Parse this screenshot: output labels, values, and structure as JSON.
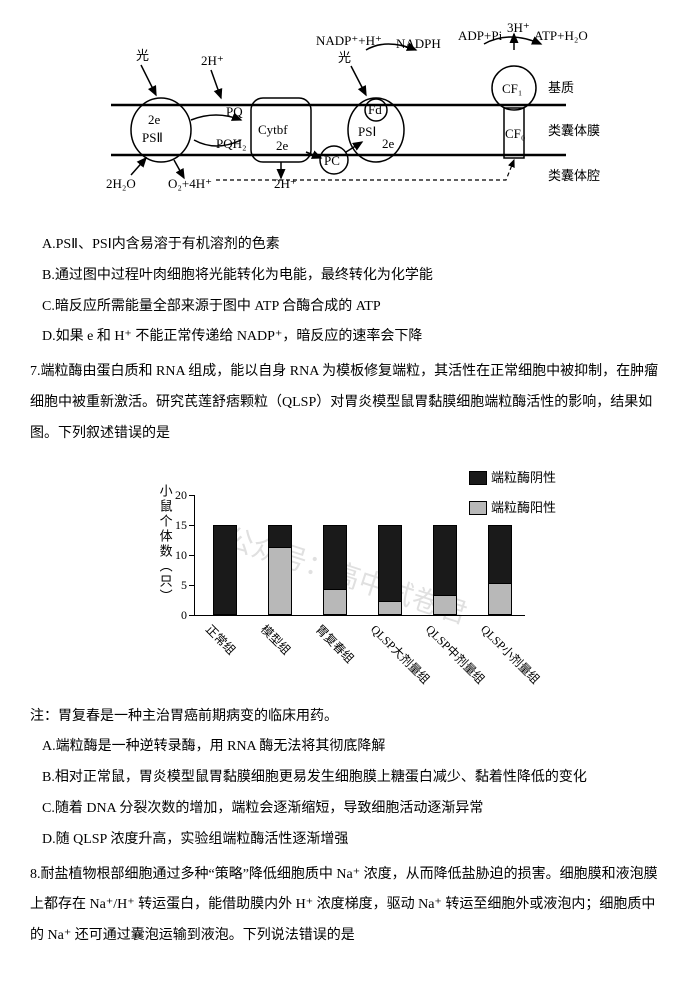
{
  "diagram": {
    "topLabels": {
      "light1": "光",
      "h2": "2H⁺",
      "light2": "光",
      "nadp": "NADP⁺+H⁺",
      "nadph": "NADPH",
      "adp": "ADP+Pi",
      "atp": "ATP+H₂O",
      "h3": "3H⁺"
    },
    "complexes": {
      "ps2_e": "2e",
      "ps2": "PSⅡ",
      "pq": "PQ",
      "pqh2": "PQH₂",
      "cytbf": "Cytbf",
      "cytbf_e": "2e",
      "pc": "PC",
      "fd": "Fd",
      "ps1": "PSⅠ",
      "ps1_e": "2e",
      "cf1": "CF₁",
      "cf0": "CF₀"
    },
    "sideLabels": {
      "stroma": "基质",
      "membrane": "类囊体膜",
      "lumen": "类囊体腔"
    },
    "bottomLabels": {
      "h2o": "2H₂O",
      "o2": "O₂+4H⁺",
      "h2_lumen": "2H⁺"
    },
    "colors": {
      "line": "#000000",
      "bg": "#ffffff"
    }
  },
  "q6_options": {
    "A": "A.PSⅡ、PSⅠ内含易溶于有机溶剂的色素",
    "B": "B.通过图中过程叶肉细胞将光能转化为电能，最终转化为化学能",
    "C": "C.暗反应所需能量全部来源于图中 ATP 合酶合成的 ATP",
    "D": "D.如果 e 和 H⁺ 不能正常传递给 NADP⁺，暗反应的速率会下降"
  },
  "q7_stem": "7.端粒酶由蛋白质和 RNA 组成，能以自身 RNA 为模板修复端粒，其活性在正常细胞中被抑制，在肿瘤细胞中被重新激活。研究芪莲舒痞颗粒（QLSP）对胃炎模型鼠胃黏膜细胞端粒酶活性的影响，结果如图。下列叙述错误的是",
  "watermark": "公众号：高中试卷君",
  "chart": {
    "y_title": "小鼠个体数（只）",
    "y_ticks": [
      0,
      5,
      10,
      15,
      20
    ],
    "y_max": 20,
    "legend_neg": "端粒酶阴性",
    "legend_pos": "端粒酶阳性",
    "neg_color": "#1a1a1a",
    "pos_color": "#b8b8b8",
    "categories": [
      "正常组",
      "模型组",
      "胃复春组",
      "QLSP大剂量组",
      "QLSP中剂量组",
      "QLSP小剂量组"
    ],
    "totals": [
      15,
      15,
      15,
      15,
      15,
      15
    ],
    "positives": [
      0,
      11,
      4,
      2,
      3,
      5
    ]
  },
  "q7_note": "注：胃复春是一种主治胃癌前期病变的临床用药。",
  "q7_options": {
    "A": "A.端粒酶是一种逆转录酶，用 RNA 酶无法将其彻底降解",
    "B": "B.相对正常鼠，胃炎模型鼠胃黏膜细胞更易发生细胞膜上糖蛋白减少、黏着性降低的变化",
    "C": "C.随着 DNA 分裂次数的增加，端粒会逐渐缩短，导致细胞活动逐渐异常",
    "D": "D.随 QLSP 浓度升高，实验组端粒酶活性逐渐增强"
  },
  "q8_stem": "8.耐盐植物根部细胞通过多种“策略”降低细胞质中 Na⁺ 浓度，从而降低盐胁迫的损害。细胞膜和液泡膜上都存在 Na⁺/H⁺ 转运蛋白，能借助膜内外 H⁺ 浓度梯度，驱动 Na⁺ 转运至细胞外或液泡内；细胞质中的 Na⁺ 还可通过囊泡运输到液泡。下列说法错误的是"
}
